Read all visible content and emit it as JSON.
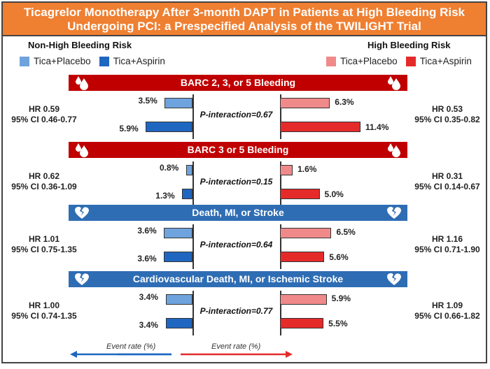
{
  "title": {
    "line1": "Ticagrelor Monotherapy After 3-month DAPT in Patients at High Bleeding Risk",
    "line2": "Undergoing PCI: a Prespecified Analysis of the TWILIGHT Trial"
  },
  "colors": {
    "title_bg": "#ef7f31",
    "bleeding_band": "#c00000",
    "ischemic_band": "#2e6db4",
    "nhbr_placebo": "#6fa3dd",
    "nhbr_aspirin": "#1f66c1",
    "hbr_placebo": "#f08a8a",
    "hbr_aspirin": "#e52a2a"
  },
  "groups": {
    "left": {
      "title": "Non-High Bleeding Risk",
      "legend": [
        "Tica+Placebo",
        "Tica+Aspirin"
      ]
    },
    "right": {
      "title": "High Bleeding Risk",
      "legend": [
        "Tica+Placebo",
        "Tica+Aspirin"
      ]
    }
  },
  "axis_label": "Event rate (%)",
  "chart_data": {
    "type": "bar",
    "orientation": "horizontal-butterfly",
    "title": "Ticagrelor Monotherapy After 3-month DAPT in Patients at High Bleeding Risk Undergoing PCI: a Prespecified Analysis of the TWILIGHT Trial",
    "xlabel": "Event rate (%)",
    "series": [
      "Tica+Placebo",
      "Tica+Aspirin"
    ],
    "panels": [
      {
        "name": "BARC 2, 3, or 5 Bleeding",
        "type": "bleeding",
        "p_interaction": "P-interaction=0.67",
        "non_hbr": {
          "values": [
            3.5,
            5.9
          ],
          "labels": [
            "3.5%",
            "5.9%"
          ],
          "hr": "HR 0.59",
          "ci": "95% CI 0.46-0.77"
        },
        "hbr": {
          "values": [
            6.3,
            11.4
          ],
          "labels": [
            "6.3%",
            "11.4%"
          ],
          "hr": "HR 0.53",
          "ci": "95% CI 0.35-0.82"
        }
      },
      {
        "name": "BARC 3 or 5 Bleeding",
        "type": "bleeding",
        "p_interaction": "P-interaction=0.15",
        "non_hbr": {
          "values": [
            0.8,
            1.3
          ],
          "labels": [
            "0.8%",
            "1.3%"
          ],
          "hr": "HR 0.62",
          "ci": "95% CI 0.36-1.09"
        },
        "hbr": {
          "values": [
            1.6,
            5.0
          ],
          "labels": [
            "1.6%",
            "5.0%"
          ],
          "hr": "HR 0.31",
          "ci": "95% CI 0.14-0.67"
        }
      },
      {
        "name": "Death, MI, or Stroke",
        "type": "ischemic",
        "p_interaction": "P-interaction=0.64",
        "non_hbr": {
          "values": [
            3.6,
            3.6
          ],
          "labels": [
            "3.6%",
            "3.6%"
          ],
          "hr": "HR 1.01",
          "ci": "95% CI 0.75-1.35"
        },
        "hbr": {
          "values": [
            6.5,
            5.6
          ],
          "labels": [
            "6.5%",
            "5.6%"
          ],
          "hr": "HR 1.16",
          "ci": "95% CI 0.71-1.90"
        }
      },
      {
        "name": "Cardiovascular Death, MI, or Ischemic Stroke",
        "type": "ischemic",
        "p_interaction": "P-interaction=0.77",
        "non_hbr": {
          "values": [
            3.4,
            3.4
          ],
          "labels": [
            "3.4%",
            "3.4%"
          ],
          "hr": "HR 1.00",
          "ci": "95% CI 0.74-1.35"
        },
        "hbr": {
          "values": [
            5.9,
            5.5
          ],
          "labels": [
            "5.9%",
            "5.5%"
          ],
          "hr": "HR 1.09",
          "ci": "95% CI 0.66-1.82"
        }
      }
    ]
  }
}
